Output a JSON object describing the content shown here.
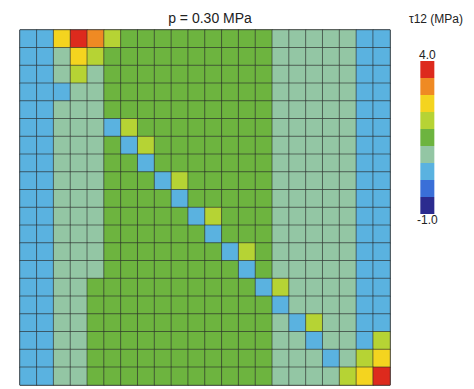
{
  "chart_data": {
    "type": "heatmap",
    "title": "p = 0.30 MPa",
    "tick_labels": false,
    "colorbar": {
      "label": "τ12 (MPa)",
      "range": [
        -1,
        4
      ],
      "ticks": [
        {
          "value": 4,
          "label": "4.0"
        },
        {
          "value": -1,
          "label": "-1.0"
        }
      ],
      "colors": [
        "#2b2b8f",
        "#3a6fd8",
        "#5ab2e0",
        "#93c6a4",
        "#6db43f",
        "#b6d334",
        "#f4d41f",
        "#ef8a23",
        "#dd2a1d"
      ]
    },
    "cells": [
      [
        0.4,
        0.4,
        2.6,
        3.7,
        3.1,
        2.0,
        1.5,
        1.5,
        1.5,
        1.5,
        1.5,
        1.5,
        1.5,
        1.5,
        1.5,
        1.0,
        1.0,
        1.0,
        1.0,
        1.0,
        0.4,
        0.4
      ],
      [
        0.4,
        0.4,
        1.0,
        2.6,
        2.0,
        1.5,
        1.5,
        1.5,
        1.5,
        1.5,
        1.5,
        1.5,
        1.5,
        1.5,
        1.5,
        1.0,
        1.0,
        1.0,
        1.0,
        1.0,
        0.4,
        0.4
      ],
      [
        0.4,
        0.4,
        1.0,
        2.0,
        1.0,
        1.5,
        1.5,
        1.5,
        1.5,
        1.5,
        1.5,
        1.5,
        1.5,
        1.5,
        1.5,
        1.0,
        1.0,
        1.0,
        1.0,
        1.0,
        0.4,
        0.4
      ],
      [
        0.4,
        0.4,
        0.4,
        1.0,
        1.0,
        1.5,
        1.5,
        1.5,
        1.5,
        1.5,
        1.5,
        1.5,
        1.5,
        1.5,
        1.5,
        1.0,
        1.0,
        1.0,
        1.0,
        1.0,
        0.4,
        0.4
      ],
      [
        0.4,
        0.4,
        1.0,
        1.0,
        1.0,
        1.5,
        1.5,
        1.5,
        1.5,
        1.5,
        1.5,
        1.5,
        1.5,
        1.5,
        1.5,
        1.0,
        1.0,
        1.0,
        1.0,
        1.0,
        0.4,
        0.4
      ],
      [
        0.4,
        0.4,
        1.0,
        1.0,
        1.0,
        0.4,
        2.0,
        1.5,
        1.5,
        1.5,
        1.5,
        1.5,
        1.5,
        1.5,
        1.5,
        1.0,
        1.0,
        1.0,
        1.0,
        1.0,
        0.4,
        0.4
      ],
      [
        0.4,
        0.4,
        1.0,
        1.0,
        1.0,
        1.5,
        0.4,
        2.0,
        1.5,
        1.5,
        1.5,
        1.5,
        1.5,
        1.5,
        1.5,
        1.0,
        1.0,
        1.0,
        1.0,
        1.0,
        0.4,
        0.4
      ],
      [
        0.4,
        0.4,
        1.0,
        1.0,
        1.0,
        1.5,
        1.5,
        0.4,
        1.5,
        1.5,
        1.5,
        1.5,
        1.5,
        1.5,
        1.5,
        1.0,
        1.0,
        1.0,
        1.0,
        1.0,
        0.4,
        0.4
      ],
      [
        0.4,
        0.4,
        1.0,
        1.0,
        1.0,
        1.5,
        1.5,
        1.5,
        0.4,
        2.0,
        1.5,
        1.5,
        1.5,
        1.5,
        1.5,
        1.0,
        1.0,
        1.0,
        1.0,
        1.0,
        0.4,
        0.4
      ],
      [
        0.4,
        0.4,
        1.0,
        1.0,
        1.0,
        1.5,
        1.5,
        1.5,
        1.5,
        0.4,
        1.5,
        1.5,
        1.5,
        1.5,
        1.5,
        1.0,
        1.0,
        1.0,
        1.0,
        1.0,
        0.4,
        0.4
      ],
      [
        0.4,
        0.4,
        1.0,
        1.0,
        1.0,
        1.5,
        1.5,
        1.5,
        1.5,
        1.5,
        0.4,
        2.0,
        1.5,
        1.5,
        1.5,
        1.0,
        1.0,
        1.0,
        1.0,
        1.0,
        0.4,
        0.4
      ],
      [
        0.4,
        0.4,
        1.0,
        1.0,
        1.0,
        1.5,
        1.5,
        1.5,
        1.5,
        1.5,
        1.5,
        0.4,
        1.5,
        1.5,
        1.5,
        1.0,
        1.0,
        1.0,
        1.0,
        1.0,
        0.4,
        0.4
      ],
      [
        0.4,
        0.4,
        1.0,
        1.0,
        1.0,
        1.5,
        1.5,
        1.5,
        1.5,
        1.5,
        1.5,
        1.5,
        0.4,
        2.0,
        1.5,
        1.0,
        1.0,
        1.0,
        1.0,
        1.0,
        0.4,
        0.4
      ],
      [
        0.4,
        0.4,
        1.0,
        1.0,
        1.0,
        1.5,
        1.5,
        1.5,
        1.5,
        1.5,
        1.5,
        1.5,
        1.5,
        0.4,
        1.5,
        1.0,
        1.0,
        1.0,
        1.0,
        1.0,
        0.4,
        0.4
      ],
      [
        0.4,
        0.4,
        1.0,
        1.0,
        1.5,
        1.5,
        1.5,
        1.5,
        1.5,
        1.5,
        1.5,
        1.5,
        1.5,
        1.5,
        0.4,
        2.0,
        1.0,
        1.0,
        1.0,
        1.0,
        0.4,
        0.4
      ],
      [
        0.4,
        0.4,
        1.0,
        1.0,
        1.5,
        1.5,
        1.5,
        1.5,
        1.5,
        1.5,
        1.5,
        1.5,
        1.5,
        1.5,
        1.5,
        0.4,
        1.0,
        1.0,
        1.0,
        1.0,
        0.4,
        0.4
      ],
      [
        0.4,
        0.4,
        1.0,
        1.0,
        1.5,
        1.5,
        1.5,
        1.5,
        1.5,
        1.5,
        1.5,
        1.5,
        1.5,
        1.5,
        1.5,
        1.0,
        0.4,
        2.0,
        1.0,
        1.0,
        0.4,
        0.4
      ],
      [
        0.4,
        0.4,
        1.0,
        1.0,
        1.5,
        1.5,
        1.5,
        1.5,
        1.5,
        1.5,
        1.5,
        1.5,
        1.5,
        1.5,
        1.5,
        1.0,
        1.0,
        0.4,
        1.0,
        1.0,
        0.4,
        2.0
      ],
      [
        0.4,
        0.4,
        1.0,
        1.0,
        1.5,
        1.5,
        1.5,
        1.5,
        1.5,
        1.5,
        1.5,
        1.5,
        1.5,
        1.5,
        1.5,
        1.0,
        1.0,
        1.0,
        0.4,
        1.0,
        2.0,
        2.6
      ],
      [
        0.4,
        0.4,
        1.0,
        1.0,
        1.5,
        1.5,
        1.5,
        1.5,
        1.5,
        1.5,
        1.5,
        1.5,
        1.5,
        1.5,
        1.5,
        1.0,
        1.0,
        1.0,
        1.0,
        2.0,
        2.6,
        3.7
      ]
    ]
  }
}
